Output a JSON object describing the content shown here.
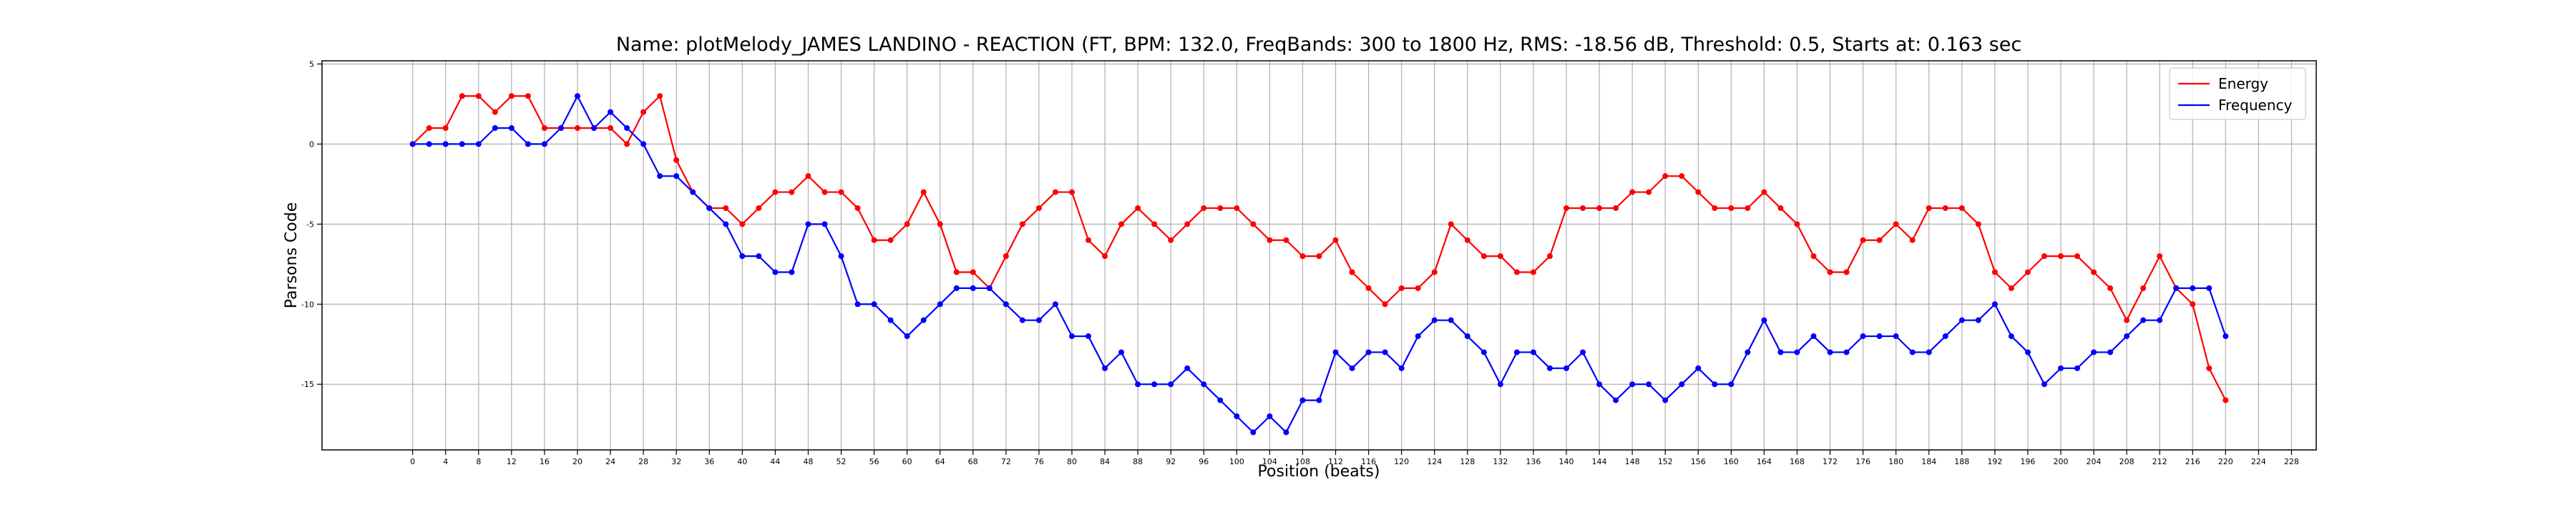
{
  "chart_data": {
    "type": "line",
    "title": "Name: plotMelody_JAMES LANDINO - REACTION (FT, BPM: 132.0, FreqBands: 300 to 1800 Hz, RMS: -18.56 dB, Threshold: 0.5, Starts at: 0.163 sec",
    "x_label": "Position (beats)",
    "y_label": "Parsons Code",
    "x": [
      0,
      2,
      4,
      6,
      8,
      10,
      12,
      14,
      16,
      18,
      20,
      22,
      24,
      26,
      28,
      30,
      32,
      34,
      36,
      38,
      40,
      42,
      44,
      46,
      48,
      50,
      52,
      54,
      56,
      58,
      60,
      62,
      64,
      66,
      68,
      70,
      72,
      74,
      76,
      78,
      80,
      82,
      84,
      86,
      88,
      90,
      92,
      94,
      96,
      98,
      100,
      102,
      104,
      106,
      108,
      110,
      112,
      114,
      116,
      118,
      120,
      122,
      124,
      126,
      128,
      130,
      132,
      134,
      136,
      138,
      140,
      142,
      144,
      146,
      148,
      150,
      152,
      154,
      156,
      158,
      160,
      162,
      164,
      166,
      168,
      170,
      172,
      174,
      176,
      178,
      180,
      182,
      184,
      186,
      188,
      190,
      192,
      194,
      196,
      198,
      200,
      202,
      204,
      206,
      208,
      210,
      212,
      214,
      216,
      218,
      220
    ],
    "series": [
      {
        "name": "Energy",
        "color": "#ff0000",
        "values": [
          0,
          1,
          1,
          3,
          3,
          2,
          3,
          3,
          1,
          1,
          1,
          1,
          1,
          0,
          2,
          3,
          -1,
          -3,
          -4,
          -4,
          -5,
          -4,
          -3,
          -3,
          -2,
          -3,
          -3,
          -4,
          -6,
          -6,
          -5,
          -3,
          -5,
          -8,
          -8,
          -9,
          -7,
          -5,
          -4,
          -3,
          -3,
          -6,
          -7,
          -5,
          -4,
          -5,
          -6,
          -5,
          -4,
          -4,
          -4,
          -5,
          -6,
          -6,
          -7,
          -7,
          -6,
          -8,
          -9,
          -10,
          -9,
          -9,
          -8,
          -5,
          -6,
          -7,
          -7,
          -8,
          -8,
          -7,
          -4,
          -4,
          -4,
          -4,
          -3,
          -3,
          -2,
          -2,
          -3,
          -4,
          -4,
          -4,
          -3,
          -4,
          -5,
          -7,
          -8,
          -8,
          -6,
          -6,
          -5,
          -6,
          -4,
          -4,
          -4,
          -5,
          -8,
          -9,
          -8,
          -7,
          -7,
          -7,
          -8,
          -9,
          -11,
          -9,
          -7,
          -9,
          -10,
          -14,
          -16
        ]
      },
      {
        "name": "Frequency",
        "color": "#0000ff",
        "values": [
          0,
          0,
          0,
          0,
          0,
          1,
          1,
          0,
          0,
          1,
          3,
          1,
          2,
          1,
          0,
          -2,
          -2,
          -3,
          -4,
          -5,
          -7,
          -7,
          -8,
          -8,
          -5,
          -5,
          -7,
          -10,
          -10,
          -11,
          -12,
          -11,
          -10,
          -9,
          -9,
          -9,
          -10,
          -11,
          -11,
          -10,
          -12,
          -12,
          -14,
          -13,
          -15,
          -15,
          -15,
          -14,
          -15,
          -16,
          -17,
          -18,
          -17,
          -18,
          -16,
          -16,
          -13,
          -14,
          -13,
          -13,
          -14,
          -12,
          -11,
          -11,
          -12,
          -13,
          -15,
          -13,
          -13,
          -14,
          -14,
          -13,
          -15,
          -16,
          -15,
          -15,
          -16,
          -15,
          -14,
          -15,
          -15,
          -13,
          -11,
          -13,
          -13,
          -12,
          -13,
          -13,
          -12,
          -12,
          -12,
          -13,
          -13,
          -12,
          -11,
          -11,
          -10,
          -12,
          -13,
          -15,
          -14,
          -14,
          -13,
          -13,
          -12,
          -11,
          -11,
          -9,
          -9,
          -9,
          -12
        ]
      }
    ],
    "xlim": [
      -11,
      231
    ],
    "ylim": [
      -19.1,
      5.2
    ],
    "xticks": [
      0,
      4,
      8,
      12,
      16,
      20,
      24,
      28,
      32,
      36,
      40,
      44,
      48,
      52,
      56,
      60,
      64,
      68,
      72,
      76,
      80,
      84,
      88,
      92,
      96,
      100,
      104,
      108,
      112,
      116,
      120,
      124,
      128,
      132,
      136,
      140,
      144,
      148,
      152,
      156,
      160,
      164,
      168,
      172,
      176,
      180,
      184,
      188,
      192,
      196,
      200,
      204,
      208,
      212,
      216,
      220,
      224,
      228
    ],
    "yticks": [
      5,
      0,
      -5,
      -10,
      -15
    ],
    "grid": true,
    "markers": true,
    "legend": "upper right"
  }
}
